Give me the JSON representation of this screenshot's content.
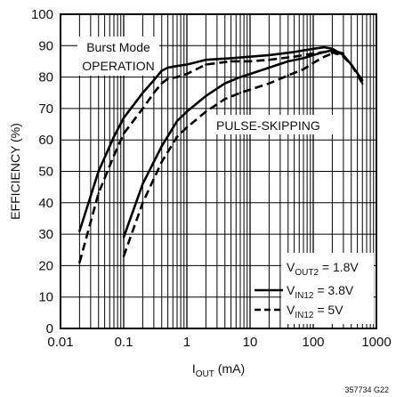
{
  "chart_data": {
    "type": "line",
    "title": "",
    "xlabel": "I",
    "xlabel_sub": "OUT",
    "xlabel_unit": " (mA)",
    "ylabel": "EFFICIENCY (%)",
    "x_scale": "log",
    "xlim": [
      0.01,
      1000
    ],
    "ylim": [
      0,
      100
    ],
    "x_ticks": [
      "0.01",
      "0.1",
      "1",
      "10",
      "100",
      "1000"
    ],
    "y_ticks": [
      "0",
      "10",
      "20",
      "30",
      "40",
      "50",
      "60",
      "70",
      "80",
      "90",
      "100"
    ],
    "grid": true,
    "figure_code": "357734 G22",
    "annotations": {
      "burst_line1": "Burst Mode",
      "burst_line2": "OPERATION",
      "pulse": "PULSE-SKIPPING"
    },
    "legend": {
      "placement": "bottom-right",
      "vout_label": {
        "main": "V",
        "sub": "OUT2",
        "rest": " = 1.8V"
      },
      "entries": [
        {
          "style": "solid",
          "main": "V",
          "sub": "IN12",
          "rest": " = 3.8V"
        },
        {
          "style": "dashed",
          "main": "V",
          "sub": "IN12",
          "rest": " = 5V"
        }
      ]
    },
    "series": [
      {
        "style": "solid",
        "mode": "burst",
        "x": [
          0.02,
          0.04,
          0.07,
          0.1,
          0.2,
          0.3,
          0.4,
          0.5,
          0.7,
          1,
          2,
          5,
          10,
          20,
          50,
          100,
          150,
          200,
          300,
          400,
          600
        ],
        "y": [
          31,
          50,
          61,
          67,
          75,
          79,
          82,
          83,
          83.5,
          84,
          85.5,
          86,
          86.5,
          87,
          88,
          89,
          89.5,
          89,
          87,
          84,
          79
        ]
      },
      {
        "style": "dashed",
        "mode": "burst",
        "x": [
          0.02,
          0.04,
          0.07,
          0.1,
          0.2,
          0.3,
          0.4,
          0.5,
          0.7,
          1,
          2,
          5,
          10,
          20,
          50,
          100,
          150,
          200,
          300,
          400,
          600
        ],
        "y": [
          21,
          43,
          55,
          62,
          70,
          75,
          78,
          79.5,
          80,
          81,
          84,
          85,
          85,
          85.5,
          86.5,
          87.5,
          88,
          88,
          86.5,
          84,
          78
        ]
      },
      {
        "style": "solid",
        "mode": "pulse-skipping",
        "x": [
          0.1,
          0.2,
          0.4,
          0.7,
          1,
          2,
          4,
          7,
          10,
          20,
          40,
          70,
          100,
          150,
          200,
          300
        ],
        "y": [
          29,
          46,
          58,
          66,
          69,
          74,
          78,
          80,
          81,
          83,
          85,
          86,
          87,
          88,
          88.5,
          87.5
        ]
      },
      {
        "style": "dashed",
        "mode": "pulse-skipping",
        "x": [
          0.1,
          0.2,
          0.4,
          0.7,
          1,
          2,
          4,
          7,
          10,
          20,
          40,
          70,
          100,
          150,
          200,
          300
        ],
        "y": [
          23,
          40,
          53,
          61,
          64,
          69,
          73,
          75,
          76,
          78,
          80.5,
          82.5,
          84.5,
          86.5,
          87.5,
          87.5
        ]
      }
    ]
  }
}
